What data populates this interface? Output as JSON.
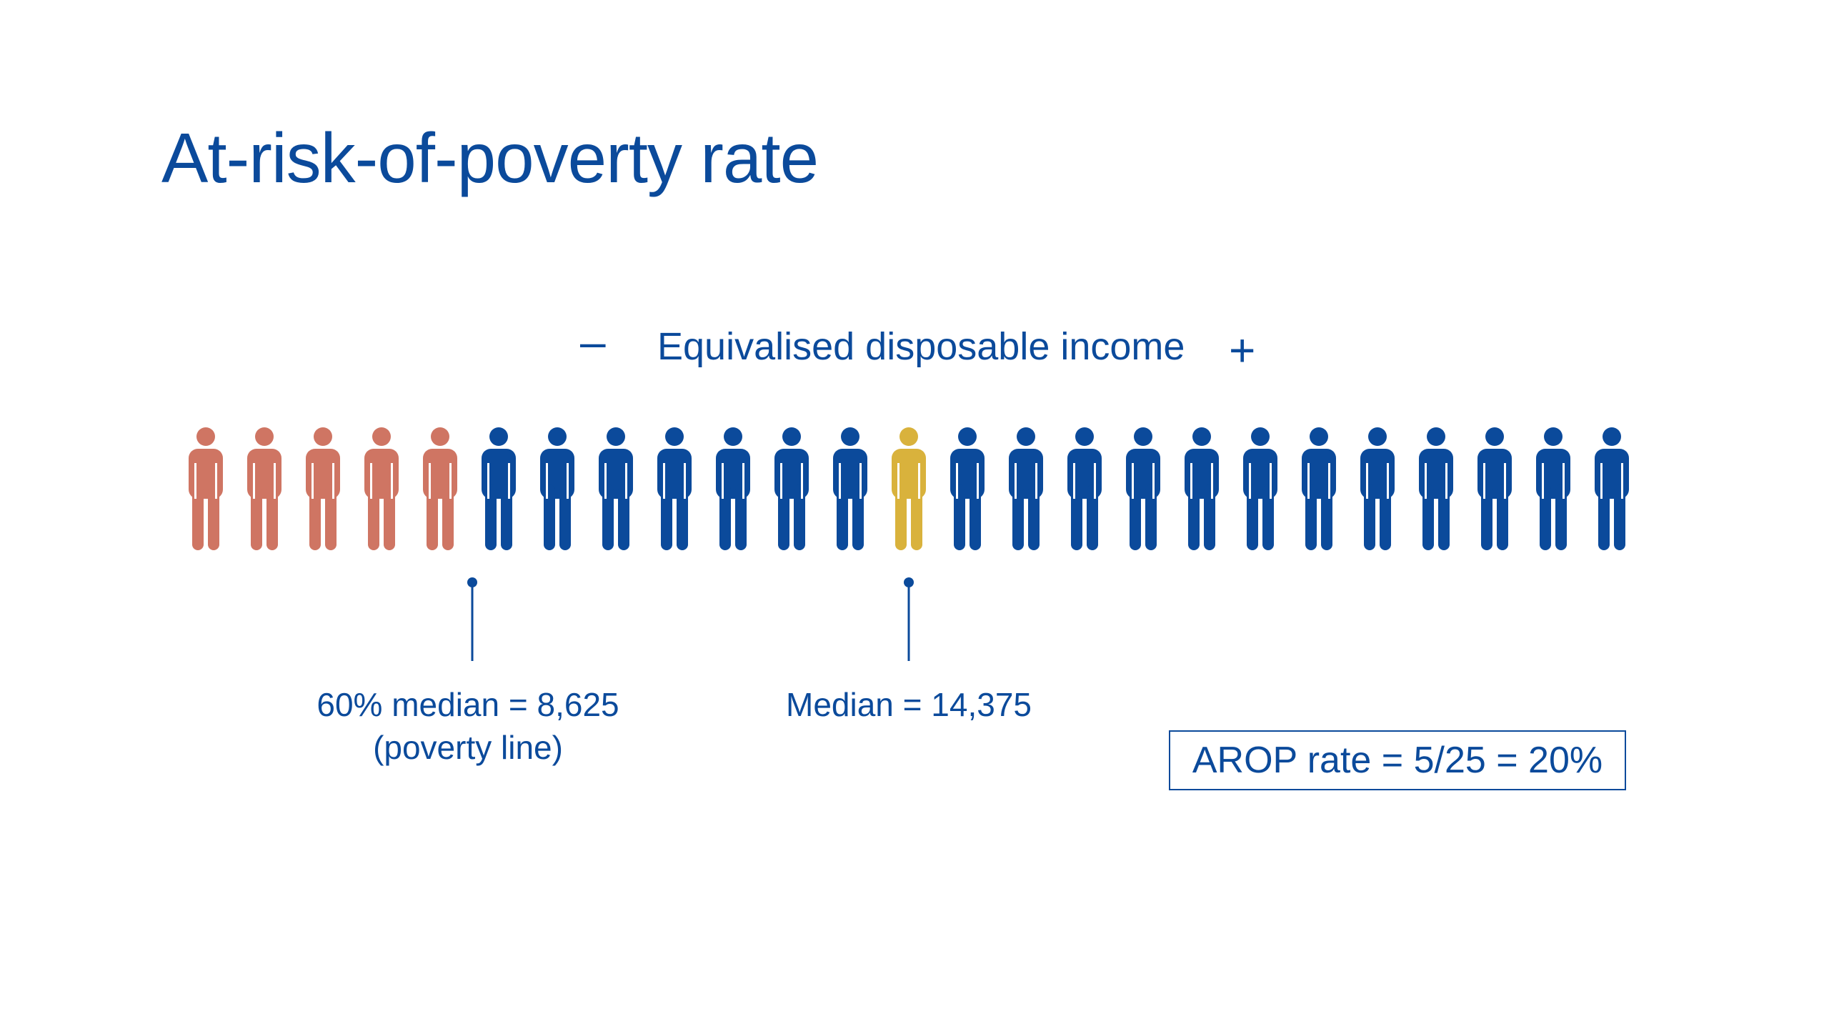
{
  "title": "At-risk-of-poverty rate",
  "axis": {
    "low_symbol": "–",
    "label": "Equivalised disposable income",
    "high_symbol": "+"
  },
  "people": {
    "total": 25,
    "at_risk_count": 5,
    "median_index": 12,
    "colors": {
      "at_risk": "#cf7563",
      "median": "#d9b23c",
      "other": "#0b4a9b",
      "text": "#0b4a9b"
    }
  },
  "markers": {
    "poverty_line": {
      "line1": "60% median = 8,625",
      "line2": "(poverty line)"
    },
    "median": {
      "label": "Median = 14,375"
    }
  },
  "result": {
    "label": "AROP rate = 5/25 = 20%"
  }
}
